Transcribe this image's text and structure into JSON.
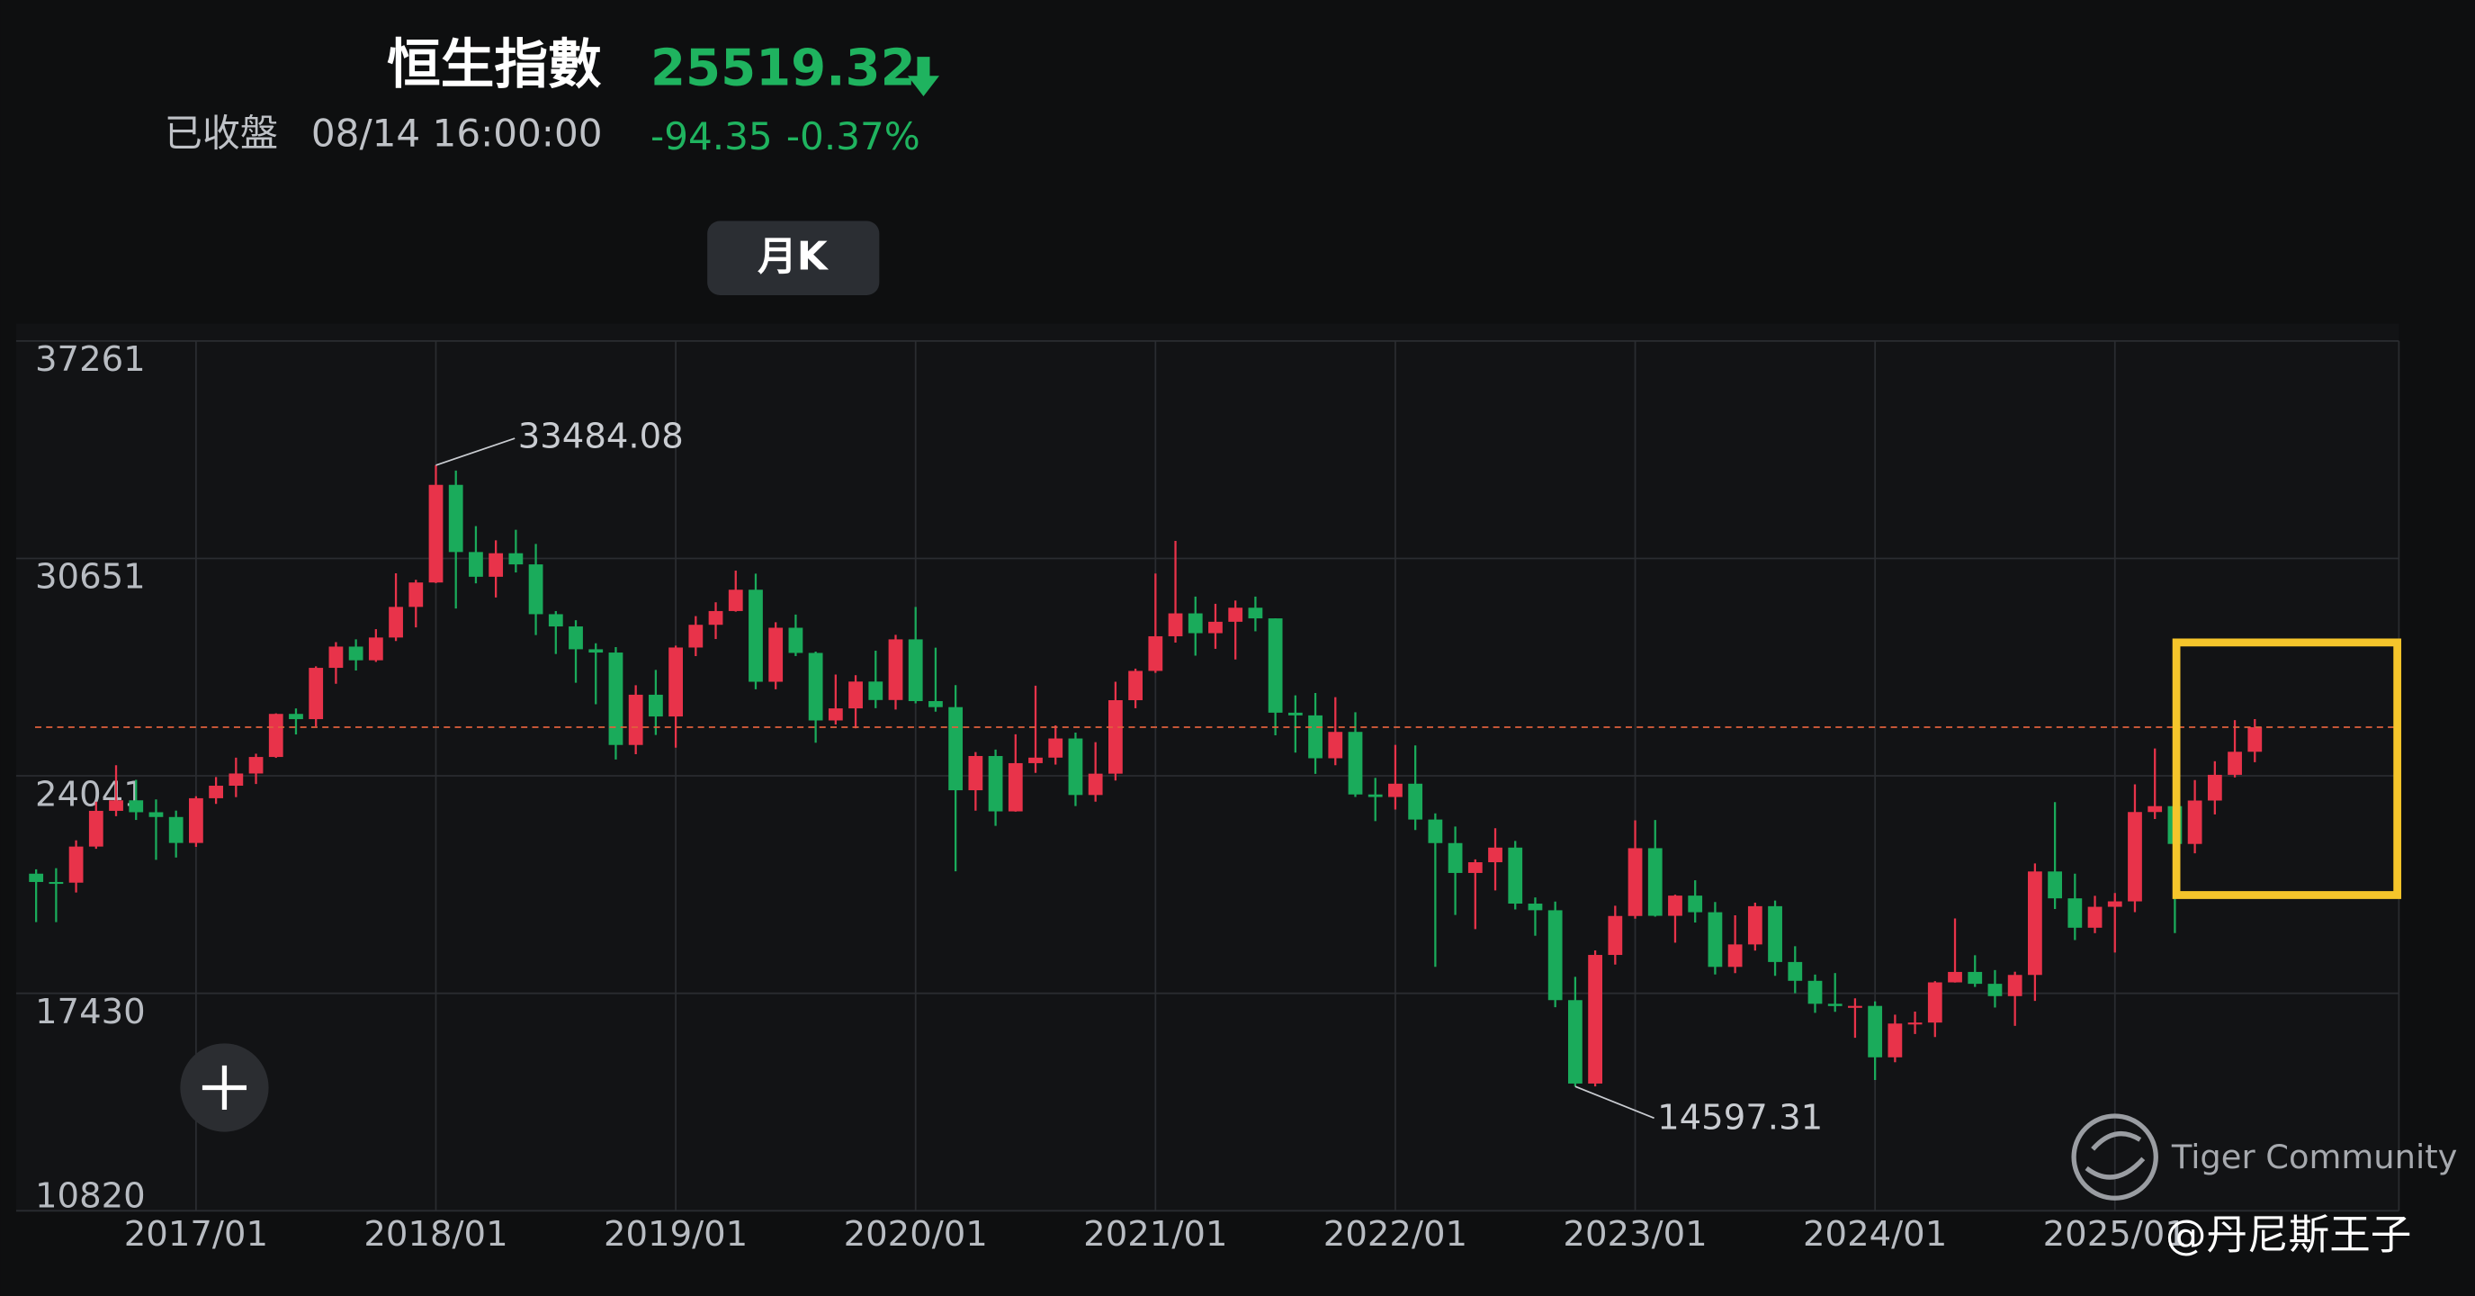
{
  "header": {
    "title": "恒生指數",
    "status": "已收盤",
    "time": "08/14 16:00:00",
    "change": "-94.35",
    "change_pct": "-0.37%",
    "period": "月K"
  },
  "chart_data": {
    "type": "candlestick",
    "categories": [
      null,
      null,
      null,
      null,
      null,
      null,
      null,
      null,
      "2017/01",
      null,
      null,
      null,
      null,
      null,
      null,
      null,
      null,
      null,
      null,
      null,
      "2018/01",
      null,
      null,
      null,
      null,
      null,
      null,
      null,
      null,
      null,
      null,
      null,
      "2019/01",
      null,
      null,
      null,
      null,
      null,
      null,
      null,
      null,
      null,
      null,
      null,
      "2020/01",
      null,
      null,
      null,
      null,
      null,
      null,
      null,
      null,
      null,
      null,
      null,
      "2021/01",
      null,
      null,
      null,
      null,
      null,
      null,
      null,
      null,
      null,
      null,
      null,
      "2022/01",
      null,
      null,
      null,
      null,
      null,
      null,
      null,
      null,
      null,
      null,
      null,
      "2023/01",
      null,
      null,
      null,
      null,
      null,
      null,
      null,
      null,
      null,
      null,
      null,
      "2024/01",
      null,
      null,
      null,
      null,
      null,
      null,
      null,
      null,
      null,
      null,
      null,
      "2025/01",
      null,
      null,
      null,
      null,
      null,
      null,
      null
    ],
    "open": [
      21067,
      20815,
      20794,
      21891,
      22977,
      23297,
      22935,
      22790,
      22001,
      23361,
      23741,
      24112,
      24615,
      25924,
      25765,
      27324,
      27970,
      27554,
      28246,
      29177,
      29919,
      32887,
      30845,
      30093,
      30808,
      30469,
      28955,
      28583,
      27889,
      27789,
      24980,
      26507,
      25846,
      27942,
      28633,
      29051,
      29699,
      26901,
      28543,
      27778,
      25725,
      26092,
      26907,
      26346,
      28190,
      26313,
      26130,
      23603,
      24644,
      22961,
      24427,
      24595,
      25177,
      23459,
      24107,
      26341,
      27231,
      28284,
      28980,
      28378,
      28725,
      29152,
      28828,
      25961,
      25879,
      24576,
      25377,
      23475,
      23398,
      23802,
      22713,
      21997,
      21089,
      21415,
      21860,
      20157,
      19955,
      17223,
      14687,
      18597,
      19781,
      21842,
      19786,
      20400,
      19895,
      18234,
      18916,
      20079,
      18382,
      17810,
      17112,
      17043,
      17047,
      15485,
      16511,
      16541,
      17763,
      18080,
      17719,
      17345,
      17989,
      21134,
      20317,
      19424,
      20060,
      20225,
      22941,
      23120,
      21971,
      23290,
      24072,
      24773
    ],
    "high": [
      21200,
      21234,
      22080,
      23255,
      24364,
      23920,
      23325,
      22984,
      23421,
      24005,
      24594,
      24714,
      25941,
      26090,
      27369,
      28106,
      28191,
      28500,
      30199,
      30000,
      33484.08,
      33320,
      31633,
      31201,
      31521,
      31090,
      29050,
      28772,
      28071,
      27955,
      26795,
      27260,
      28000,
      28897,
      29317,
      30280,
      30189,
      28710,
      28944,
      27817,
      27120,
      27101,
      27847,
      28328,
      29175,
      27938,
      26800,
      24764,
      24839,
      25303,
      26782,
      25576,
      25357,
      25065,
      26900,
      27300,
      30191,
      31183,
      29490,
      29271,
      29372,
      29490,
      28830,
      26488,
      26561,
      26434,
      25973,
      23980,
      24983,
      24965,
      22900,
      22501,
      21500,
      22449,
      22063,
      20345,
      20218,
      17930,
      18735,
      20094,
      22688,
      22700,
      20428,
      20867,
      20205,
      19803,
      20186,
      20250,
      18862,
      18000,
      18046,
      17278,
      17186,
      16781,
      16874,
      17800,
      19706,
      18588,
      18137,
      18086,
      21380,
      23241,
      21068,
      20394,
      20479,
      23783,
      24874,
      23307,
      23911,
      24485,
      25735,
      25766
    ],
    "low": [
      19595,
      19594,
      20495,
      21823,
      22815,
      22700,
      21488,
      21558,
      21883,
      23188,
      23394,
      23793,
      24588,
      25299,
      25546,
      26840,
      27243,
      27505,
      28138,
      28554,
      29900,
      29129,
      29893,
      29463,
      30224,
      28322,
      27745,
      26872,
      26219,
      24540,
      24700,
      25285,
      24896,
      27681,
      28200,
      29032,
      26671,
      26671,
      27683,
      25047,
      25602,
      25486,
      26099,
      26058,
      26244,
      25991,
      21139,
      22983,
      22520,
      22953,
      24131,
      24383,
      23124,
      23257,
      23900,
      26096,
      27170,
      28092,
      27696,
      27902,
      27580,
      28435,
      25273,
      24748,
      24099,
      24365,
      23400,
      22665,
      23018,
      22395,
      18235,
      19812,
      19381,
      20557,
      19981,
      19180,
      17006,
      14597.31,
      14600,
      18304,
      19700,
      19762,
      18969,
      19582,
      18003,
      18044,
      18729,
      17961,
      17433,
      16837,
      16867,
      16078,
      14794,
      15335,
      16193,
      16101,
      17756,
      17624,
      16998,
      16441,
      17200,
      19994,
      19049,
      19259,
      18671,
      19897,
      22730,
      19260,
      21685,
      22868,
      23993,
      24456
    ],
    "close": [
      20815,
      20794,
      21891,
      22977,
      23297,
      22935,
      22790,
      22001,
      23361,
      23741,
      24112,
      24615,
      25924,
      25765,
      27324,
      27970,
      27554,
      28246,
      29177,
      29919,
      32887,
      30845,
      30093,
      30808,
      30469,
      28955,
      28583,
      27889,
      27789,
      24980,
      26507,
      25846,
      27942,
      28633,
      29051,
      29699,
      26901,
      28543,
      27778,
      25725,
      26092,
      26907,
      26346,
      28190,
      26313,
      26130,
      23603,
      24644,
      22961,
      24427,
      24595,
      25177,
      23459,
      24107,
      26341,
      27231,
      28284,
      28980,
      28378,
      28725,
      29152,
      28828,
      25961,
      25879,
      24576,
      25377,
      23475,
      23398,
      23802,
      22713,
      21997,
      21089,
      21415,
      21860,
      20157,
      19955,
      17223,
      14687,
      18597,
      19781,
      21842,
      19786,
      20400,
      19895,
      18234,
      18916,
      20079,
      18382,
      17810,
      17112,
      17043,
      17047,
      15485,
      16511,
      16541,
      17763,
      18080,
      17719,
      17345,
      17989,
      21134,
      20317,
      19424,
      20060,
      20225,
      22941,
      23120,
      21971,
      23290,
      24072,
      24773,
      25519.32
    ],
    "up_color": "#e8334a",
    "down_color": "#1aab5b",
    "ylim": [
      10820,
      37261
    ],
    "yticks": [
      37261,
      30651,
      24041,
      17430,
      10820
    ],
    "grid": true
  },
  "watermark": {
    "brand": "Tiger Community",
    "author": "@丹尼斯王子"
  }
}
